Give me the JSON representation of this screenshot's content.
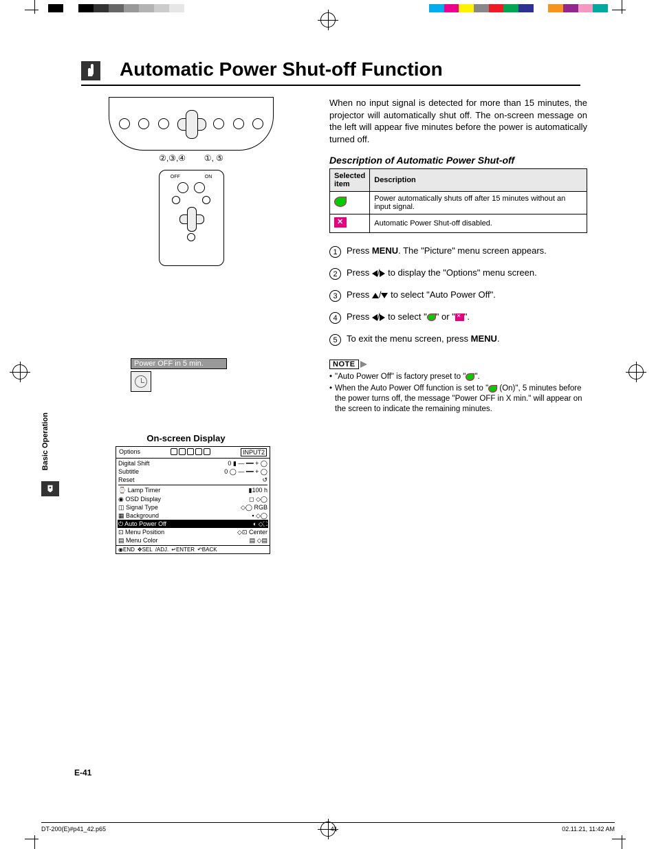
{
  "colorbar_left": [
    "#000000",
    "#ffffff",
    "#000000",
    "#333333",
    "#666666",
    "#999999",
    "#b3b3b3",
    "#cccccc",
    "#e6e6e6",
    "#ffffff"
  ],
  "colorbar_right": [
    "#00aeef",
    "#ec008c",
    "#fff200",
    "#888888",
    "#ed1c24",
    "#00a651",
    "#2e3192",
    "#ffffff",
    "#f7941d",
    "#92278f",
    "#f49ac1",
    "#00a99d"
  ],
  "title": "Automatic Power Shut-off Function",
  "diagram": {
    "callout_left": "②,③,④",
    "callout_right": "①, ⑤",
    "remote_off": "OFF",
    "remote_on": "ON",
    "below_label_off": "OFF",
    "below_label_on": "ON"
  },
  "osd_msg_label": "Power OFF in 5 min.",
  "osd_heading": "On-screen Display",
  "osd": {
    "tab": "Options",
    "input": "INPUT2",
    "rows": [
      {
        "l": "Digital Shift",
        "r": "0 ▮ — ━━ + ◯"
      },
      {
        "l": "Subtitle",
        "r": "0 ◯ — ━━ + ◯"
      },
      {
        "l": "Reset",
        "r": "↺"
      },
      {
        "l": "⌚ Lamp Timer",
        "r": "▮100 h"
      },
      {
        "l": "◉ OSD Display",
        "r": "◻   ◇◯"
      },
      {
        "l": "◫ Signal Type",
        "r": "◇◯ RGB"
      },
      {
        "l": "▦ Background",
        "r": "▪   ◇◯"
      },
      {
        "l": "⏻ Auto Power Off",
        "r": "◐   ◇⛶",
        "hl": true
      },
      {
        "l": "⊡ Menu Position",
        "r": "◇⊡ Center"
      },
      {
        "l": "▤ Menu Color",
        "r": "▤   ◇▤"
      }
    ],
    "foot": [
      "◉END",
      "✥SEL",
      "/ADJ.",
      "↵ENTER",
      "↶BACK"
    ]
  },
  "intro": "When no input signal is detected for more than 15 minutes, the projector will automatically shut off. The on-screen message on the left will appear five minutes before the power is automatically turned off.",
  "sub_heading": "Description of Automatic Power Shut-off",
  "table": {
    "col1": "Selected item",
    "col2": "Description",
    "row1": "Power automatically shuts off after 15 minutes without an input signal.",
    "row2": "Automatic Power Shut-off disabled."
  },
  "steps": {
    "s1a": "Press ",
    "s1b": "MENU",
    "s1c": ". The \"Picture\" menu screen appears.",
    "s2a": "Press ",
    "s2b": " to display the \"Options\" menu screen.",
    "s3a": "Press ",
    "s3b": " to select \"Auto Power Off\".",
    "s4a": "Press ",
    "s4b": " to select \"",
    "s4c": "\" or \"",
    "s4d": "\".",
    "s5a": "To exit the menu screen, press ",
    "s5b": "MENU",
    "s5c": "."
  },
  "note_label": "NOTE",
  "notes": {
    "n1a": "\"Auto Power Off\" is factory preset to \"",
    "n1b": "\".",
    "n2a": "When the Auto Power Off function is set to \"",
    "n2b": " (On)\", 5 minutes before the power turns off, the message \"Power OFF in X min.\" will appear on the screen to indicate the remaining minutes."
  },
  "side_tab": "Basic Operation",
  "page_num": "E-41",
  "footer": {
    "file": "DT-200(E)#p41_42.p65",
    "page": "41",
    "date": "02.11.21, 11:42 AM"
  }
}
